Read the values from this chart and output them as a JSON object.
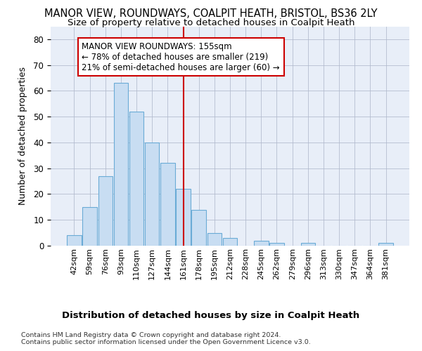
{
  "title": "MANOR VIEW, ROUNDWAYS, COALPIT HEATH, BRISTOL, BS36 2LY",
  "subtitle": "Size of property relative to detached houses in Coalpit Heath",
  "xlabel": "Distribution of detached houses by size in Coalpit Heath",
  "ylabel": "Number of detached properties",
  "bar_labels": [
    "42sqm",
    "59sqm",
    "76sqm",
    "93sqm",
    "110sqm",
    "127sqm",
    "144sqm",
    "161sqm",
    "178sqm",
    "195sqm",
    "212sqm",
    "228sqm",
    "245sqm",
    "262sqm",
    "279sqm",
    "296sqm",
    "313sqm",
    "330sqm",
    "347sqm",
    "364sqm",
    "381sqm"
  ],
  "bar_values": [
    4,
    15,
    27,
    63,
    52,
    40,
    32,
    22,
    14,
    5,
    3,
    0,
    2,
    1,
    0,
    1,
    0,
    0,
    0,
    0,
    1
  ],
  "bar_color": "#c8ddf2",
  "bar_edge_color": "#6aabd6",
  "vline_color": "#cc0000",
  "vline_x": 7,
  "annotation_line1": "MANOR VIEW ROUNDWAYS: 155sqm",
  "annotation_line2": "← 78% of detached houses are smaller (219)",
  "annotation_line3": "21% of semi-detached houses are larger (60) →",
  "annotation_box_edge": "#cc0000",
  "ylim": [
    0,
    85
  ],
  "yticks": [
    0,
    10,
    20,
    30,
    40,
    50,
    60,
    70,
    80
  ],
  "footer_line1": "Contains HM Land Registry data © Crown copyright and database right 2024.",
  "footer_line2": "Contains public sector information licensed under the Open Government Licence v3.0.",
  "plot_bg_color": "#e8eef8",
  "fig_bg_color": "#ffffff",
  "grid_color": "#b0b8cc",
  "title_fontsize": 10.5,
  "subtitle_fontsize": 9.5,
  "ylabel_fontsize": 9,
  "xlabel_fontsize": 9.5,
  "tick_fontsize": 8,
  "annot_fontsize": 8.5,
  "footer_fontsize": 6.8
}
